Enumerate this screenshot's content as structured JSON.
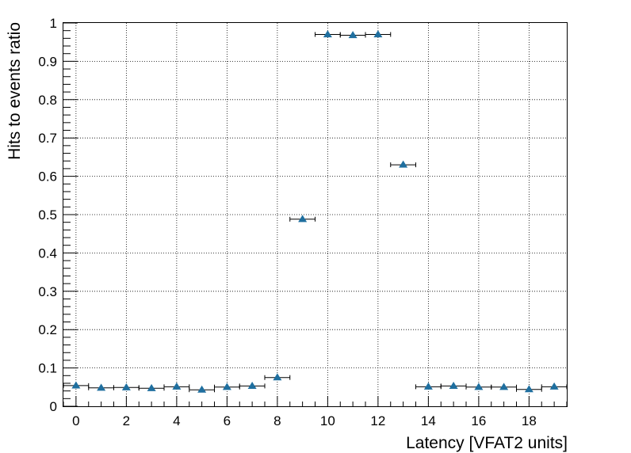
{
  "chart_data": {
    "type": "scatter",
    "xlabel": "Latency [VFAT2 units]",
    "ylabel": "Hits to events ratio",
    "xlim": [
      -0.5,
      19.5
    ],
    "ylim": [
      0,
      1
    ],
    "grid": true,
    "marker": "triangle-up",
    "marker_color": "#1f6f9f",
    "x_error": 0.5,
    "xticks": [
      "0",
      "2",
      "4",
      "6",
      "8",
      "10",
      "12",
      "14",
      "16",
      "18"
    ],
    "yticks": [
      "0",
      "0.1",
      "0.2",
      "0.3",
      "0.4",
      "0.5",
      "0.6",
      "0.7",
      "0.8",
      "0.9",
      "1"
    ],
    "series": [
      {
        "x": [
          0,
          1,
          2,
          3,
          4,
          5,
          6,
          7,
          8,
          9,
          10,
          11,
          12,
          13,
          14,
          15,
          16,
          17,
          18,
          19
        ],
        "y": [
          0.054,
          0.048,
          0.049,
          0.047,
          0.051,
          0.043,
          0.05,
          0.053,
          0.075,
          0.488,
          0.97,
          0.968,
          0.97,
          0.63,
          0.051,
          0.053,
          0.05,
          0.05,
          0.044,
          0.051
        ]
      }
    ]
  }
}
